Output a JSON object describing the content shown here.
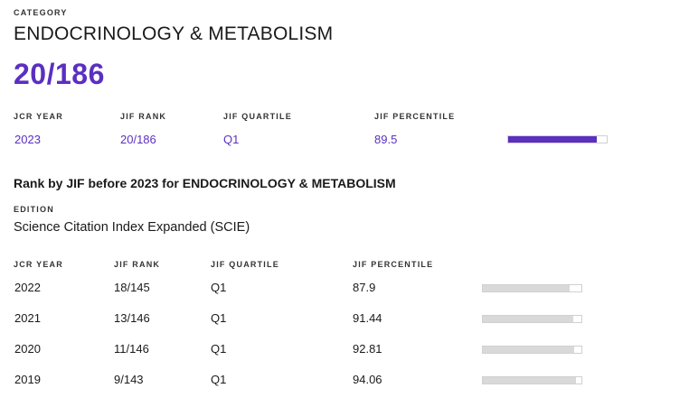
{
  "category": {
    "label": "CATEGORY",
    "name": "ENDOCRINOLOGY & METABOLISM",
    "rank": "20/186"
  },
  "current": {
    "headers": {
      "jcr_year": "JCR YEAR",
      "jif_rank": "JIF RANK",
      "jif_quartile": "JIF QUARTILE",
      "jif_percentile": "JIF PERCENTILE"
    },
    "row": {
      "jcr_year": "2023",
      "jif_rank": "20/186",
      "jif_quartile": "Q1",
      "jif_percentile": "89.5",
      "percentile_value": 89.5
    }
  },
  "history": {
    "title": "Rank by JIF before 2023 for ENDOCRINOLOGY & METABOLISM",
    "edition_label": "EDITION",
    "edition_value": "Science Citation Index Expanded (SCIE)",
    "headers": {
      "jcr_year": "JCR YEAR",
      "jif_rank": "JIF RANK",
      "jif_quartile": "JIF QUARTILE",
      "jif_percentile": "JIF PERCENTILE"
    },
    "rows": [
      {
        "jcr_year": "2022",
        "jif_rank": "18/145",
        "jif_quartile": "Q1",
        "jif_percentile": "87.9",
        "percentile_value": 87.9
      },
      {
        "jcr_year": "2021",
        "jif_rank": "13/146",
        "jif_quartile": "Q1",
        "jif_percentile": "91.44",
        "percentile_value": 91.44
      },
      {
        "jcr_year": "2020",
        "jif_rank": "11/146",
        "jif_quartile": "Q1",
        "jif_percentile": "92.81",
        "percentile_value": 92.81
      },
      {
        "jcr_year": "2019",
        "jif_rank": "9/143",
        "jif_quartile": "Q1",
        "jif_percentile": "94.06",
        "percentile_value": 94.06
      }
    ]
  },
  "colors": {
    "accent": "#5b2fc0",
    "bar_history": "#d9d9d9"
  }
}
